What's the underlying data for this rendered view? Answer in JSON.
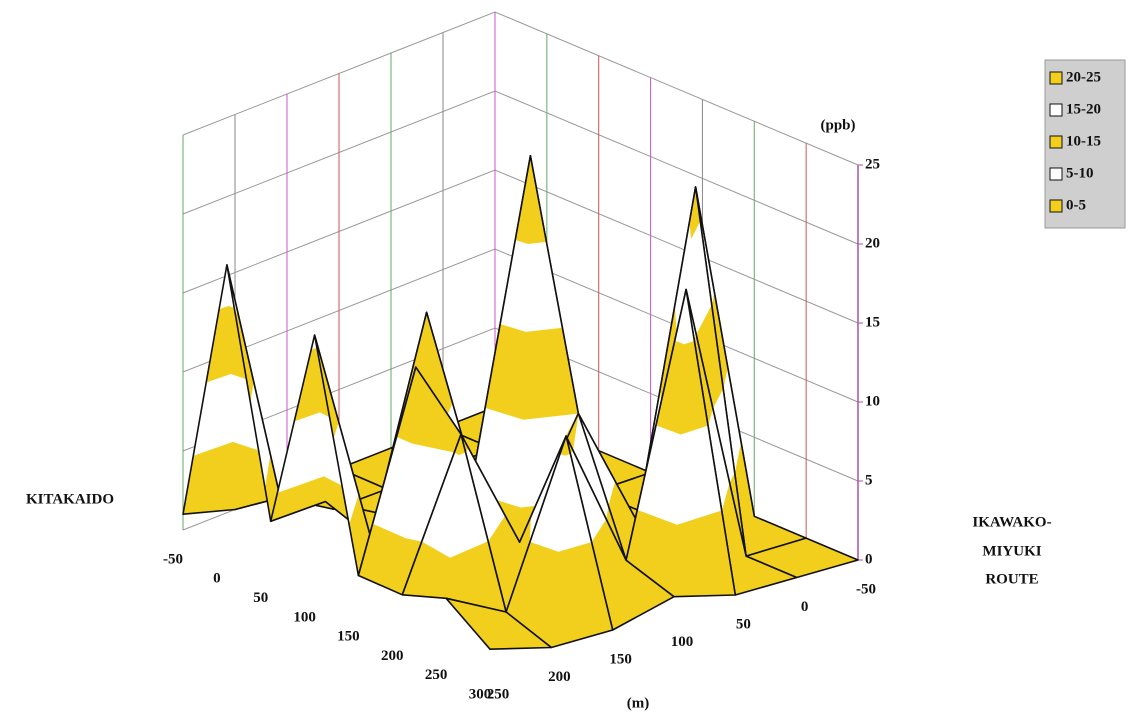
{
  "chart_data": {
    "type": "surface3d",
    "x_axis_label": "(m)",
    "z_axis_label": "(ppb)",
    "left_label": "KITAKAIDO",
    "right_label": [
      "IKAWAKO-",
      "MIYUKI",
      "ROUTE"
    ],
    "x": [
      -50,
      0,
      50,
      100,
      150,
      200,
      250,
      300
    ],
    "y": [
      -50,
      0,
      50,
      100,
      150,
      200,
      250
    ],
    "xlim": [
      -50,
      300
    ],
    "ylim": [
      -50,
      250
    ],
    "zlim": [
      0,
      25
    ],
    "zticks": [
      0,
      5,
      10,
      15,
      20,
      25
    ],
    "values": [
      [
        0,
        0,
        0,
        0,
        0,
        0,
        1
      ],
      [
        0,
        0,
        0,
        0,
        0,
        2,
        18
      ],
      [
        0,
        0,
        0,
        0,
        1,
        3,
        3
      ],
      [
        0,
        0,
        1,
        0,
        15,
        2,
        16
      ],
      [
        0,
        0,
        0,
        25,
        6,
        14,
        2
      ],
      [
        0,
        22,
        2,
        10,
        3,
        11,
        2
      ],
      [
        0,
        0,
        18,
        2,
        11,
        1,
        3
      ],
      [
        0,
        0,
        0,
        1,
        0,
        0,
        1
      ]
    ],
    "legend": [
      {
        "label": "20-25",
        "color": "#f2cf1d"
      },
      {
        "label": "15-20",
        "color": "#ffffff"
      },
      {
        "label": "10-15",
        "color": "#f2cf1d"
      },
      {
        "label": "5-10",
        "color": "#ffffff"
      },
      {
        "label": "0-5",
        "color": "#f2cf1d"
      }
    ],
    "grid": true
  }
}
